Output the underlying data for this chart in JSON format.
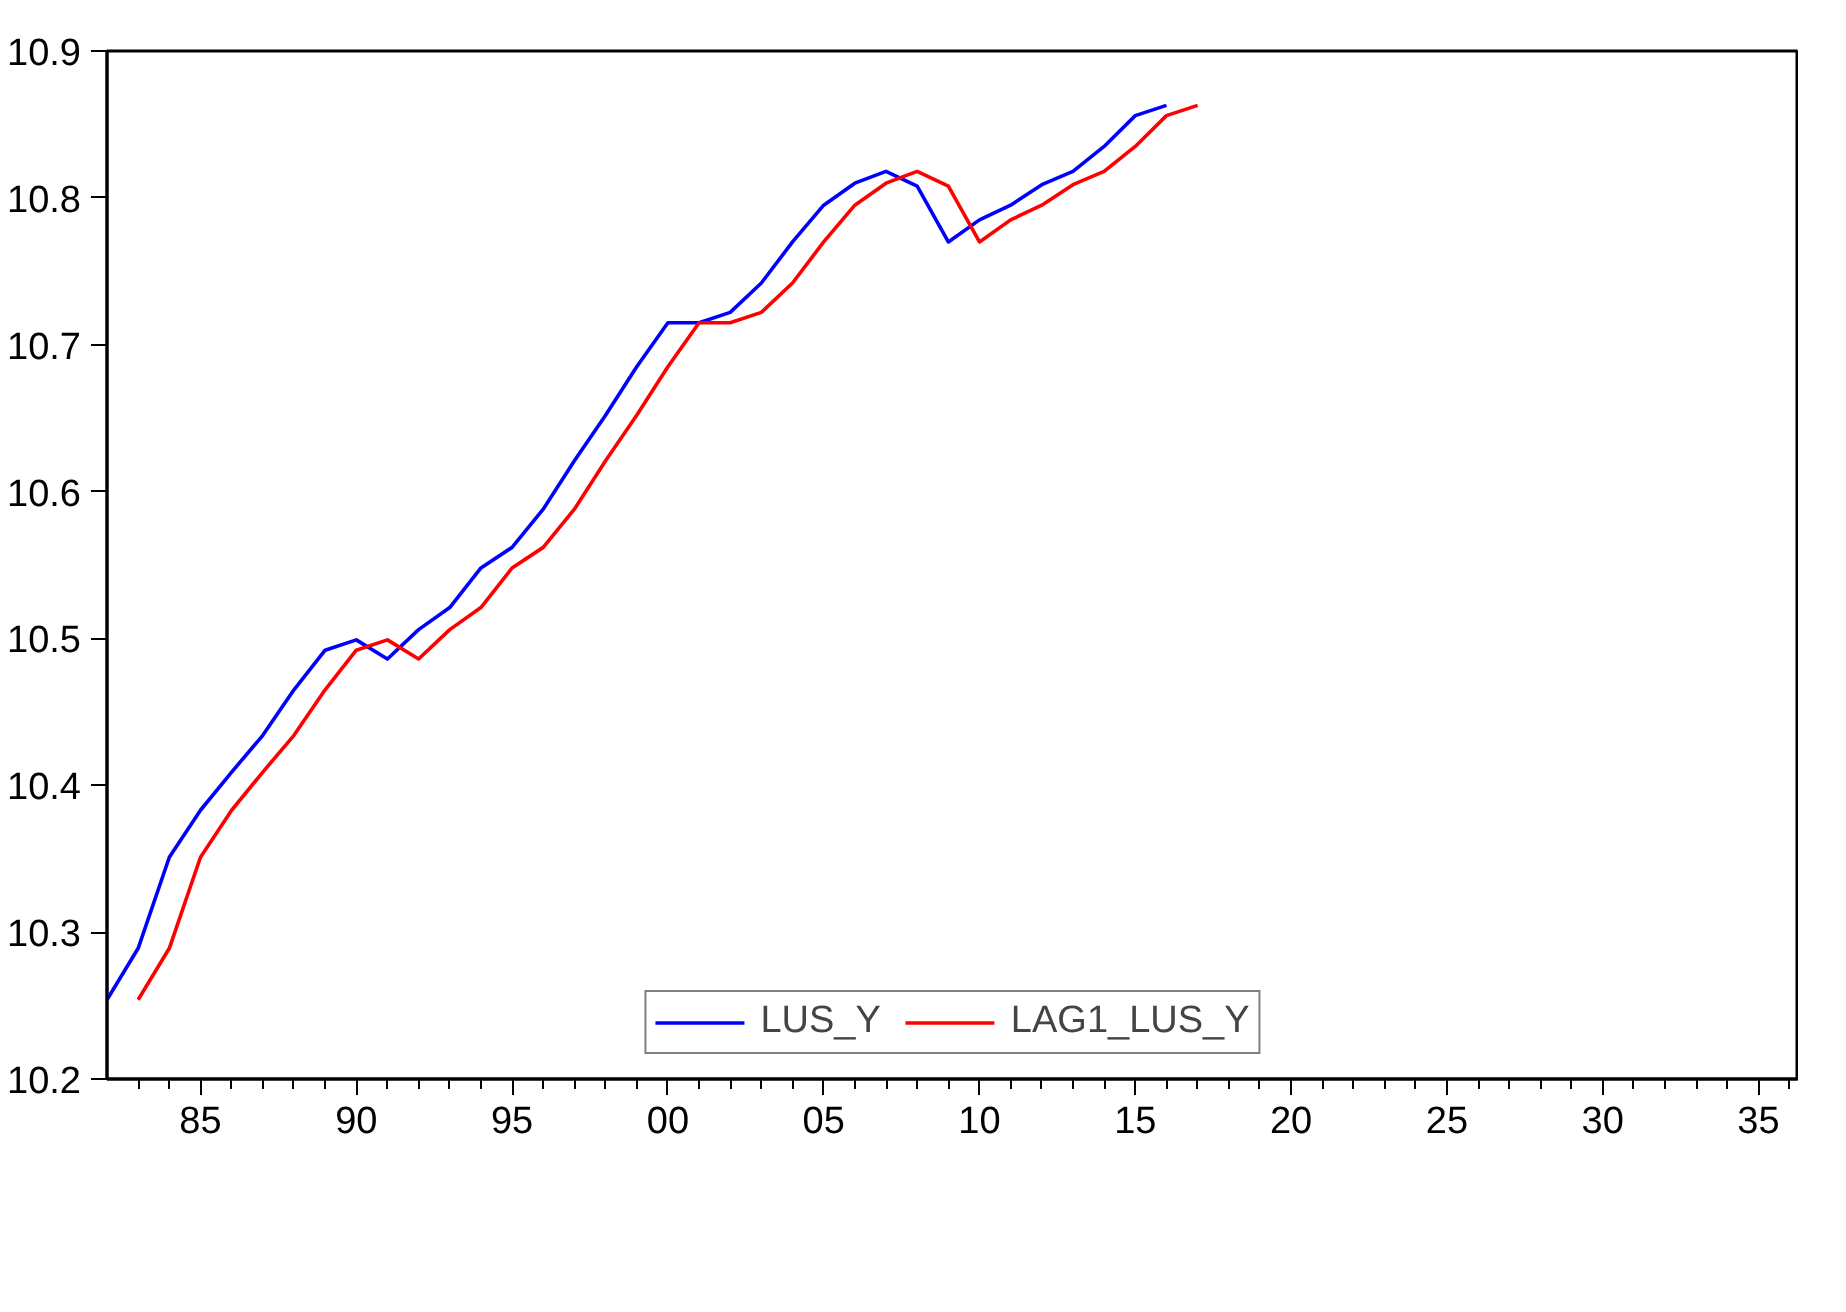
{
  "chart_data": {
    "type": "line",
    "series": [
      {
        "name": "LUS_Y",
        "color": "#0000ff",
        "x": [
          1982,
          1983,
          1984,
          1985,
          1986,
          1987,
          1988,
          1989,
          1990,
          1991,
          1992,
          1993,
          1994,
          1995,
          1996,
          1997,
          1998,
          1999,
          2000,
          2001,
          2002,
          2003,
          2004,
          2005,
          2006,
          2007,
          2008,
          2009,
          2010,
          2011,
          2012,
          2013,
          2014,
          2015,
          2016
        ],
        "values": [
          10.254,
          10.289,
          10.351,
          10.383,
          10.409,
          10.434,
          10.465,
          10.492,
          10.499,
          10.486,
          10.506,
          10.521,
          10.548,
          10.562,
          10.588,
          10.621,
          10.652,
          10.685,
          10.715,
          10.715,
          10.722,
          10.742,
          10.77,
          10.795,
          10.81,
          10.818,
          10.808,
          10.77,
          10.785,
          10.795,
          10.809,
          10.818,
          10.835,
          10.856,
          10.863
        ]
      },
      {
        "name": "LAG1_LUS_Y",
        "color": "#ff0000",
        "x": [
          1983,
          1984,
          1985,
          1986,
          1987,
          1988,
          1989,
          1990,
          1991,
          1992,
          1993,
          1994,
          1995,
          1996,
          1997,
          1998,
          1999,
          2000,
          2001,
          2002,
          2003,
          2004,
          2005,
          2006,
          2007,
          2008,
          2009,
          2010,
          2011,
          2012,
          2013,
          2014,
          2015,
          2016,
          2017
        ],
        "values": [
          10.254,
          10.289,
          10.351,
          10.383,
          10.409,
          10.434,
          10.465,
          10.492,
          10.499,
          10.486,
          10.506,
          10.521,
          10.548,
          10.562,
          10.588,
          10.621,
          10.652,
          10.685,
          10.715,
          10.715,
          10.722,
          10.742,
          10.77,
          10.795,
          10.81,
          10.818,
          10.808,
          10.77,
          10.785,
          10.795,
          10.809,
          10.818,
          10.835,
          10.856,
          10.863
        ]
      }
    ],
    "xlim": [
      1982,
      2036.3
    ],
    "xticks": [
      {
        "value": 1983,
        "label": null
      },
      {
        "value": 1984,
        "label": null
      },
      {
        "value": 1985,
        "label": "85"
      },
      {
        "value": 1986,
        "label": null
      },
      {
        "value": 1987,
        "label": null
      },
      {
        "value": 1988,
        "label": null
      },
      {
        "value": 1989,
        "label": null
      },
      {
        "value": 1990,
        "label": "90"
      },
      {
        "value": 1991,
        "label": null
      },
      {
        "value": 1992,
        "label": null
      },
      {
        "value": 1993,
        "label": null
      },
      {
        "value": 1994,
        "label": null
      },
      {
        "value": 1995,
        "label": "95"
      },
      {
        "value": 1996,
        "label": null
      },
      {
        "value": 1997,
        "label": null
      },
      {
        "value": 1998,
        "label": null
      },
      {
        "value": 1999,
        "label": null
      },
      {
        "value": 2000,
        "label": "00"
      },
      {
        "value": 2001,
        "label": null
      },
      {
        "value": 2002,
        "label": null
      },
      {
        "value": 2003,
        "label": null
      },
      {
        "value": 2004,
        "label": null
      },
      {
        "value": 2005,
        "label": "05"
      },
      {
        "value": 2006,
        "label": null
      },
      {
        "value": 2007,
        "label": null
      },
      {
        "value": 2008,
        "label": null
      },
      {
        "value": 2009,
        "label": null
      },
      {
        "value": 2010,
        "label": "10"
      },
      {
        "value": 2011,
        "label": null
      },
      {
        "value": 2012,
        "label": null
      },
      {
        "value": 2013,
        "label": null
      },
      {
        "value": 2014,
        "label": null
      },
      {
        "value": 2015,
        "label": "15"
      },
      {
        "value": 2016,
        "label": null
      },
      {
        "value": 2017,
        "label": null
      },
      {
        "value": 2018,
        "label": null
      },
      {
        "value": 2019,
        "label": null
      },
      {
        "value": 2020,
        "label": "20"
      },
      {
        "value": 2021,
        "label": null
      },
      {
        "value": 2022,
        "label": null
      },
      {
        "value": 2023,
        "label": null
      },
      {
        "value": 2024,
        "label": null
      },
      {
        "value": 2025,
        "label": "25"
      },
      {
        "value": 2026,
        "label": null
      },
      {
        "value": 2027,
        "label": null
      },
      {
        "value": 2028,
        "label": null
      },
      {
        "value": 2029,
        "label": null
      },
      {
        "value": 2030,
        "label": "30"
      },
      {
        "value": 2031,
        "label": null
      },
      {
        "value": 2032,
        "label": null
      },
      {
        "value": 2033,
        "label": null
      },
      {
        "value": 2034,
        "label": null
      },
      {
        "value": 2035,
        "label": "35"
      },
      {
        "value": 2036,
        "label": null
      }
    ],
    "ylim": [
      10.2,
      10.9
    ],
    "yticks": [
      {
        "value": 10.2,
        "label": "10.2"
      },
      {
        "value": 10.3,
        "label": "10.3"
      },
      {
        "value": 10.4,
        "label": "10.4"
      },
      {
        "value": 10.5,
        "label": "10.5"
      },
      {
        "value": 10.6,
        "label": "10.6"
      },
      {
        "value": 10.7,
        "label": "10.7"
      },
      {
        "value": 10.8,
        "label": "10.8"
      },
      {
        "value": 10.9,
        "label": "10.9"
      }
    ],
    "grid": false,
    "legend": "bottom"
  }
}
